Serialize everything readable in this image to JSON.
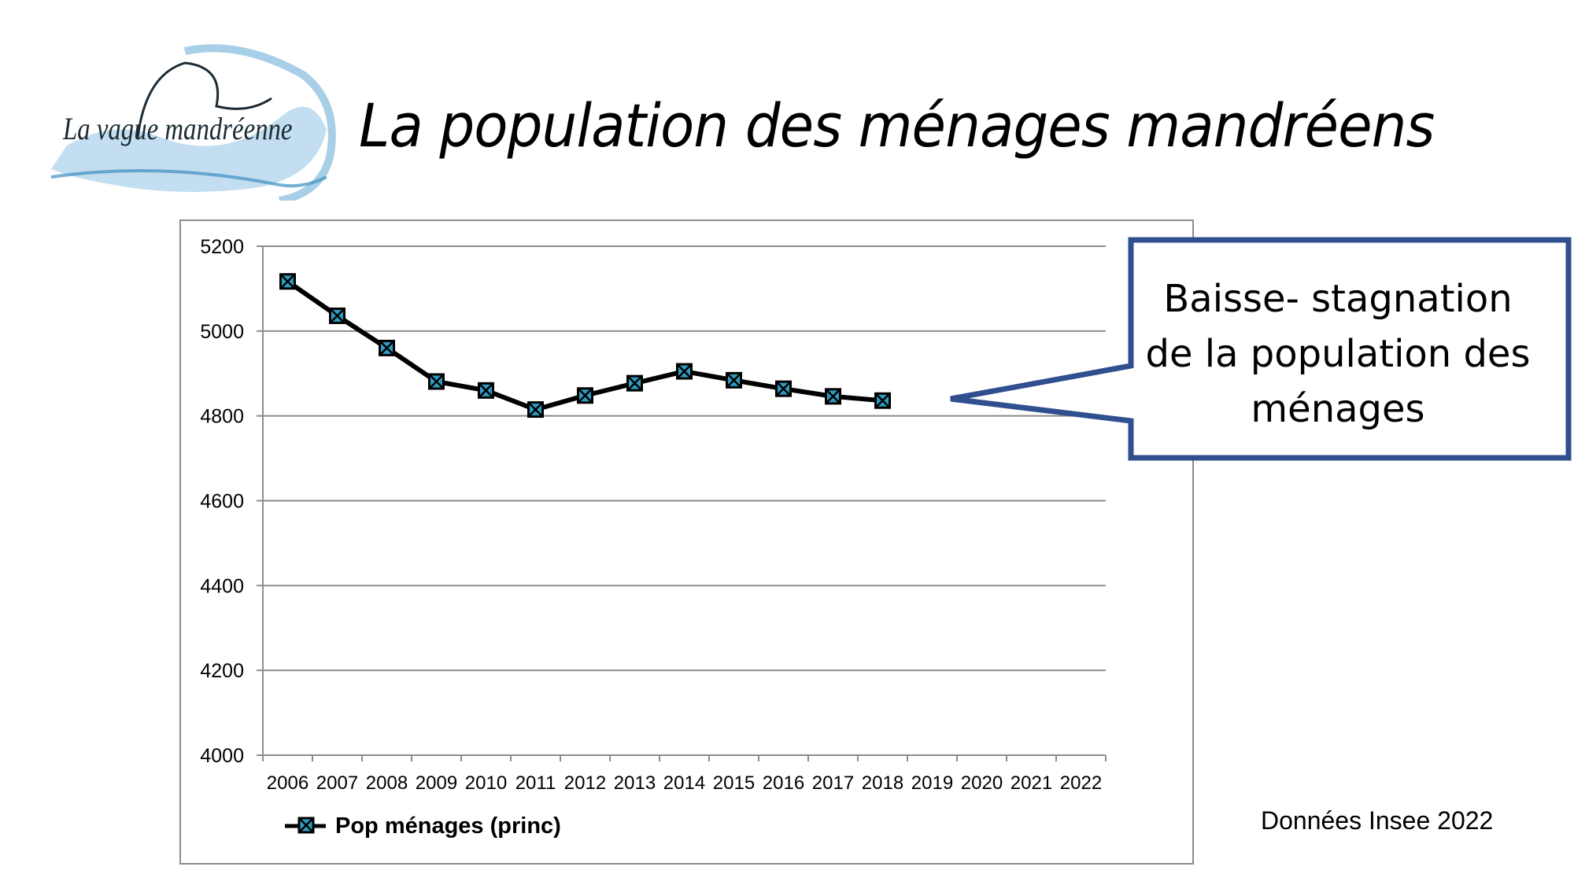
{
  "header": {
    "logo_text": "La vague mandréenne",
    "title": "La population des ménages mandréens"
  },
  "callout": {
    "lines": [
      "Baisse- stagnation",
      "de la population des",
      "ménages"
    ]
  },
  "source_note": "Données Insee 2022",
  "colors": {
    "line": "#000000",
    "marker": "#2e9cc0",
    "callout_border": "#2f4f8f",
    "grid": "#8c8c8c",
    "logo_water": "#5fa8d3"
  },
  "chart_data": {
    "type": "line",
    "title": "",
    "xlabel": "",
    "ylabel": "",
    "categories": [
      "2006",
      "2007",
      "2008",
      "2009",
      "2010",
      "2011",
      "2012",
      "2013",
      "2014",
      "2015",
      "2016",
      "2017",
      "2018",
      "2019",
      "2020",
      "2021",
      "2022"
    ],
    "ylim": [
      4000,
      5200
    ],
    "yticks": [
      "4000",
      "4200",
      "4400",
      "4600",
      "4800",
      "5000",
      "5200"
    ],
    "grid": true,
    "legend_position": "bottom-left",
    "series": [
      {
        "name": "Pop ménages (princ)",
        "marker": "x-square",
        "values": [
          5117,
          5036,
          4960,
          4881,
          4860,
          4815,
          4848,
          4877,
          4905,
          4884,
          4864,
          4846,
          4836,
          null,
          null,
          null,
          null
        ]
      }
    ]
  }
}
